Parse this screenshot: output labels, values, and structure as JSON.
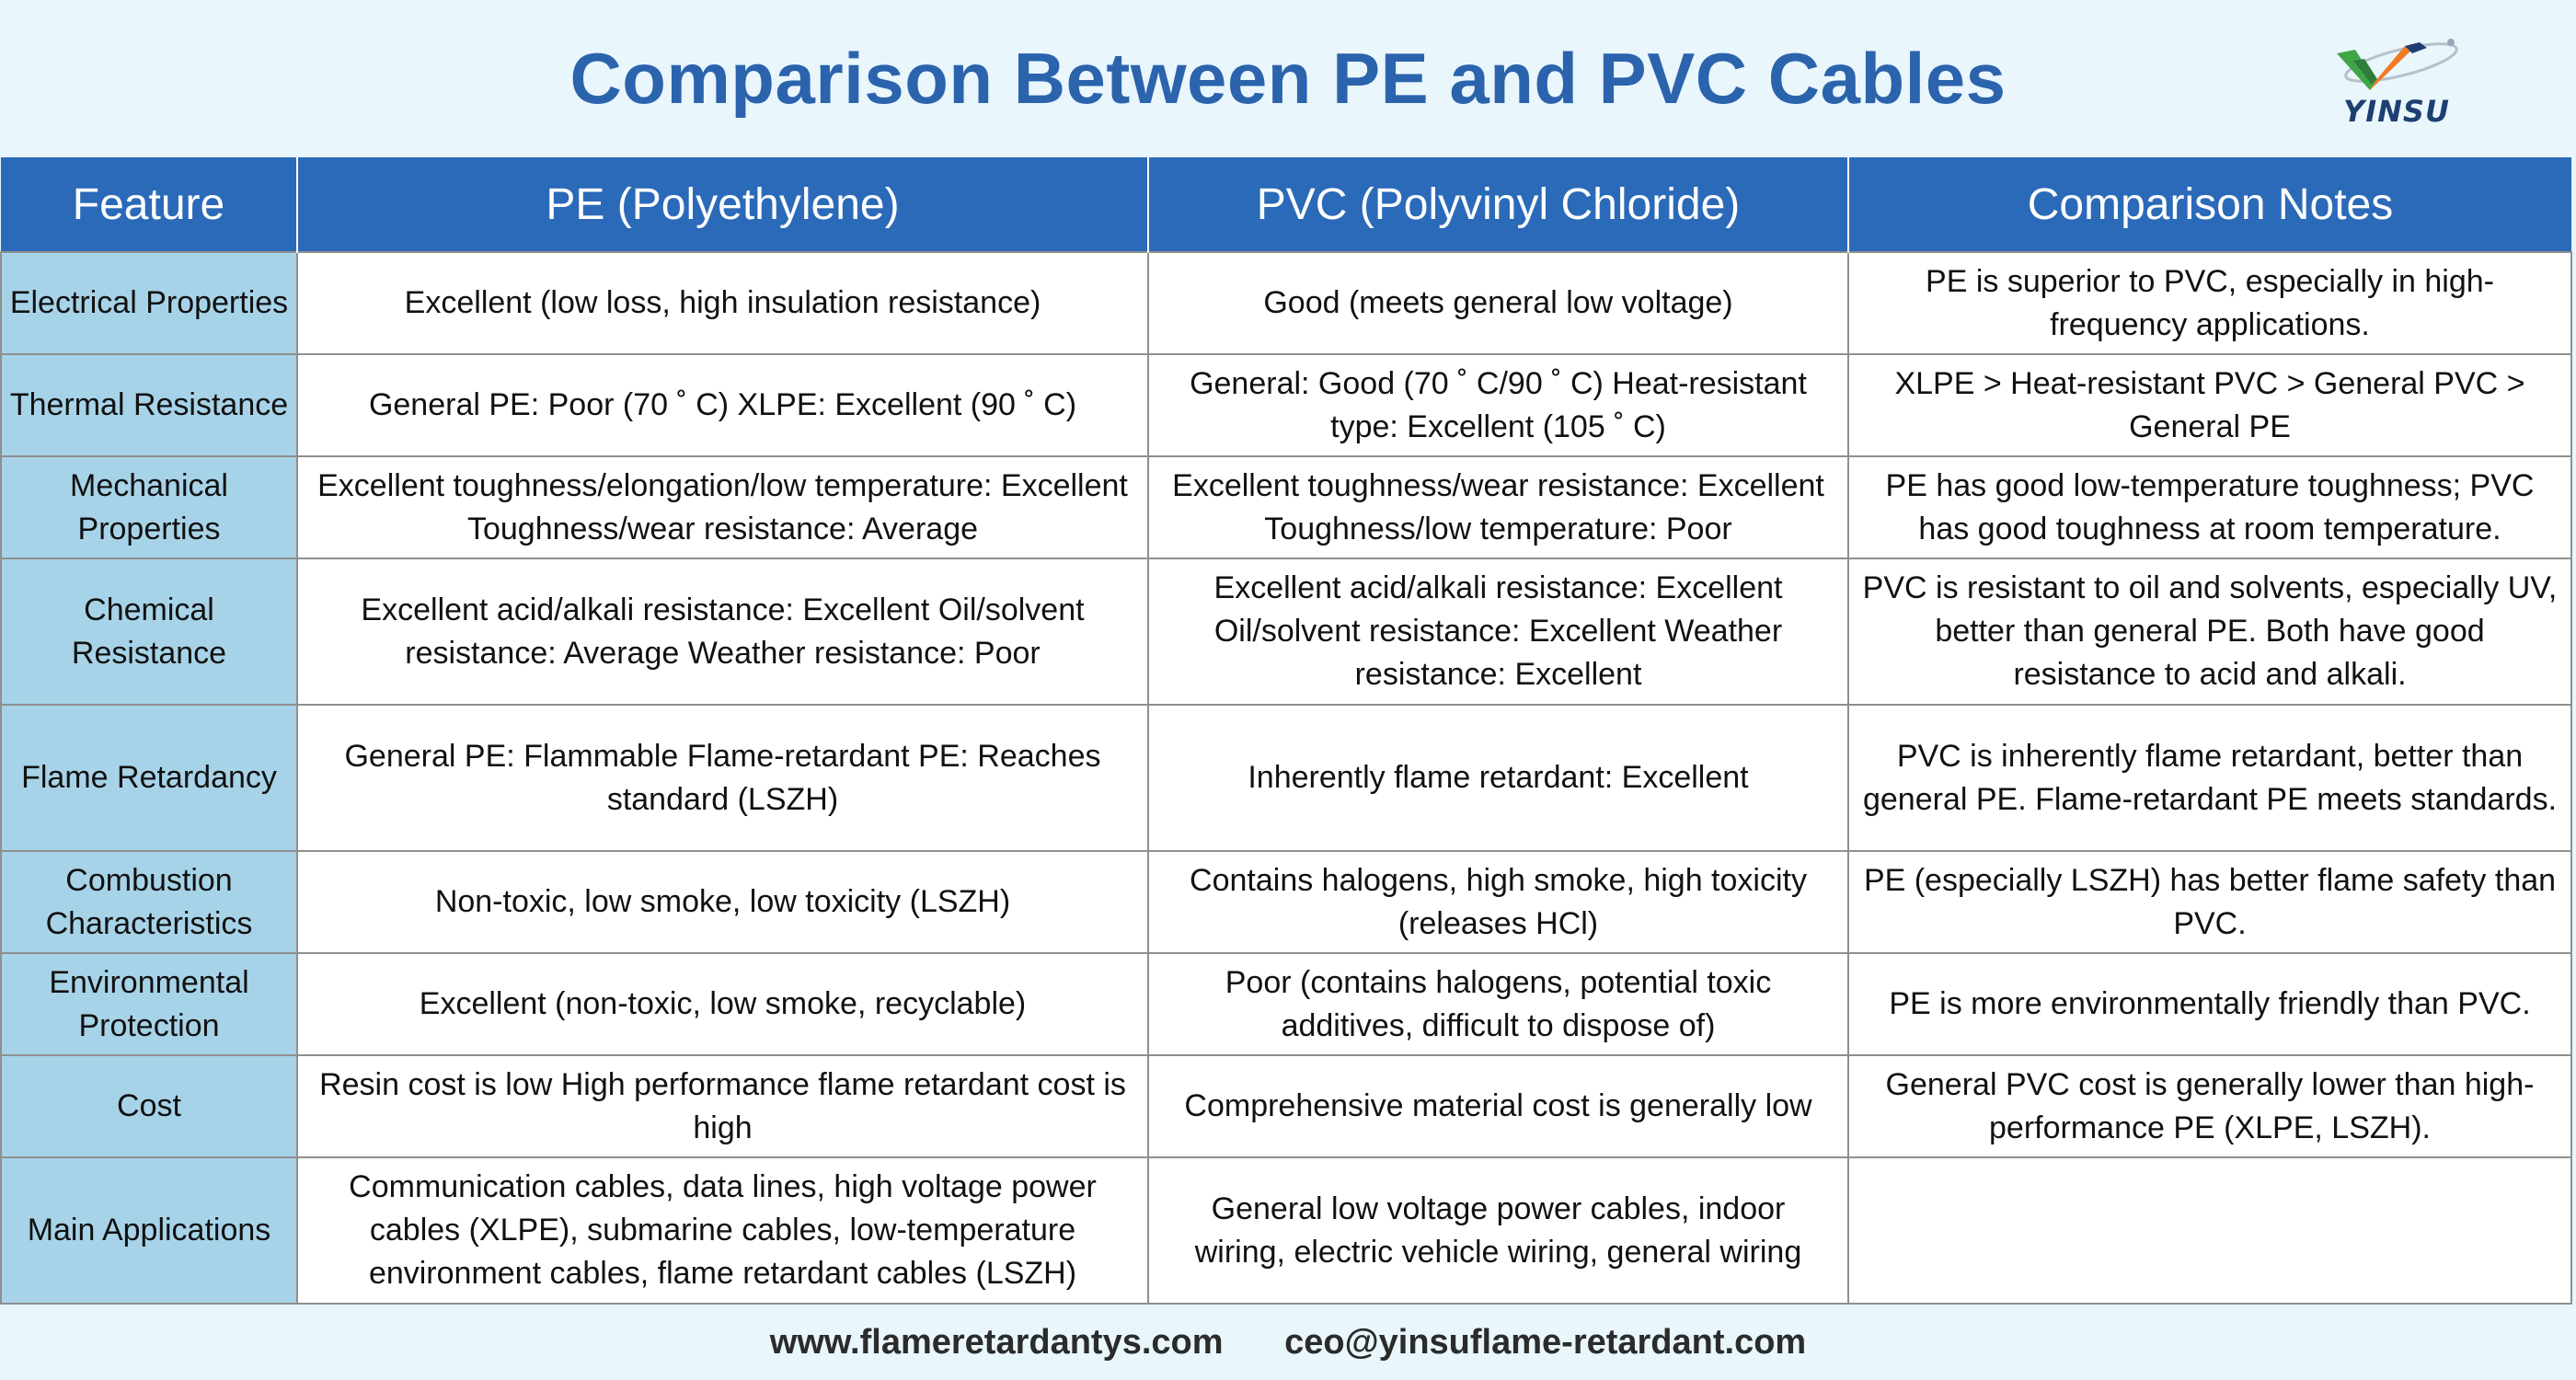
{
  "title": "Comparison Between PE and PVC Cables",
  "logo": {
    "text": "YINSU",
    "colors": {
      "green": "#3fa648",
      "orange": "#f07a26",
      "navy": "#1f3f73"
    }
  },
  "table": {
    "headers": [
      "Feature",
      "PE (Polyethylene)",
      "PVC (Polyvinyl Chloride)",
      "Comparison Notes"
    ],
    "rows": [
      {
        "feature": "Electrical Properties",
        "pe": "Excellent (low loss, high insulation resistance)",
        "pvc": "Good (meets general low voltage)",
        "notes": "PE is superior to PVC, especially in high-frequency applications."
      },
      {
        "feature": "Thermal Resistance",
        "pe": "General PE: Poor (70 ˚ C) XLPE: Excellent (90 ˚ C)",
        "pvc": "General: Good (70 ˚ C/90 ˚ C) Heat-resistant type: Excellent (105 ˚ C)",
        "notes": "XLPE > Heat-resistant PVC > General PVC > General PE"
      },
      {
        "feature": "Mechanical Properties",
        "pe": "Excellent toughness/elongation/low temperature: Excellent Toughness/wear resistance: Average",
        "pvc": "Excellent toughness/wear resistance: Excellent Toughness/low temperature: Poor",
        "notes": "PE has good low-temperature toughness; PVC has good toughness at room temperature."
      },
      {
        "feature": "Chemical Resistance",
        "pe": "Excellent acid/alkali resistance: Excellent Oil/solvent resistance: Average Weather resistance: Poor",
        "pvc": "Excellent acid/alkali resistance: Excellent Oil/solvent resistance: Excellent Weather resistance: Excellent",
        "notes": "PVC is resistant to oil and solvents, especially UV, better than general PE. Both have good resistance to acid and alkali."
      },
      {
        "feature": "Flame Retardancy",
        "pe": "General PE: Flammable Flame-retardant PE: Reaches standard (LSZH)",
        "pvc": "Inherently flame retardant: Excellent",
        "notes": "PVC is inherently flame retardant, better than general PE. Flame-retardant PE meets standards."
      },
      {
        "feature": "Combustion Characteristics",
        "pe": "Non-toxic, low smoke, low toxicity (LSZH)",
        "pvc": "Contains halogens, high smoke, high toxicity (releases HCl)",
        "notes": "PE (especially LSZH) has better flame safety than PVC."
      },
      {
        "feature": "Environmental Protection",
        "pe": "Excellent (non-toxic, low smoke, recyclable)",
        "pvc": "Poor (contains halogens, potential toxic additives, difficult to dispose of)",
        "notes": "PE is more environmentally friendly than PVC."
      },
      {
        "feature": "Cost",
        "pe": "Resin cost is low High performance flame retardant cost is high",
        "pvc": "Comprehensive material cost is generally low",
        "notes": "General PVC cost is generally lower than high-performance PE (XLPE, LSZH)."
      },
      {
        "feature": "Main Applications",
        "pe": "Communication cables, data lines, high voltage power cables (XLPE), submarine cables, low-temperature environment cables, flame retardant cables (LSZH)",
        "pvc": "General low voltage power cables, indoor wiring, electric vehicle wiring, general wiring",
        "notes": ""
      }
    ]
  },
  "footer": {
    "website": "www.flameretardantys.com",
    "email": "ceo@yinsuflame-retardant.com"
  },
  "colors": {
    "title": "#2b63ad",
    "header_bg": "#2b6ab8",
    "feature_bg": "#a7d3e8",
    "page_bg": "#e9f6fb"
  }
}
